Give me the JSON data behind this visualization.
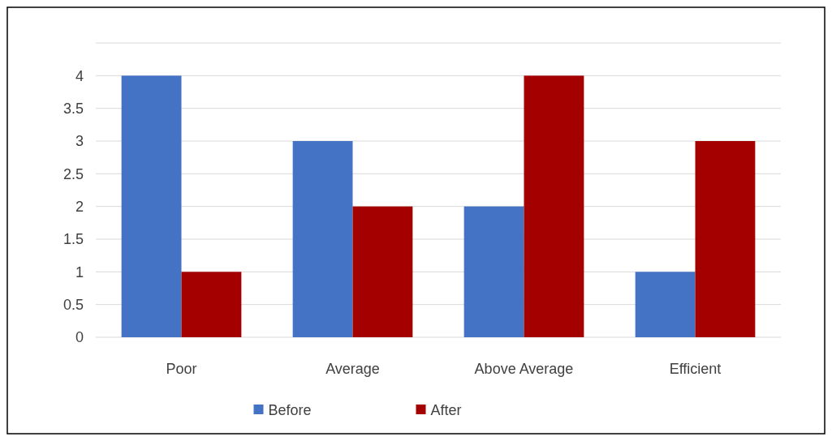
{
  "chart_data": {
    "type": "bar",
    "categories": [
      "Poor",
      "Average",
      "Above Average",
      "Efficient"
    ],
    "series": [
      {
        "name": "Before",
        "color": "#4472c4",
        "values": [
          4,
          3,
          2,
          1
        ]
      },
      {
        "name": "After",
        "color": "#a50000",
        "values": [
          1,
          2,
          4,
          3
        ]
      }
    ],
    "ylim": [
      0,
      4.5
    ],
    "yticks": [
      0,
      0.5,
      1,
      1.5,
      2,
      2.5,
      3,
      3.5,
      4,
      {
        "value": 4.5,
        "label": null
      }
    ],
    "grid": "y",
    "legend": "bottom"
  }
}
